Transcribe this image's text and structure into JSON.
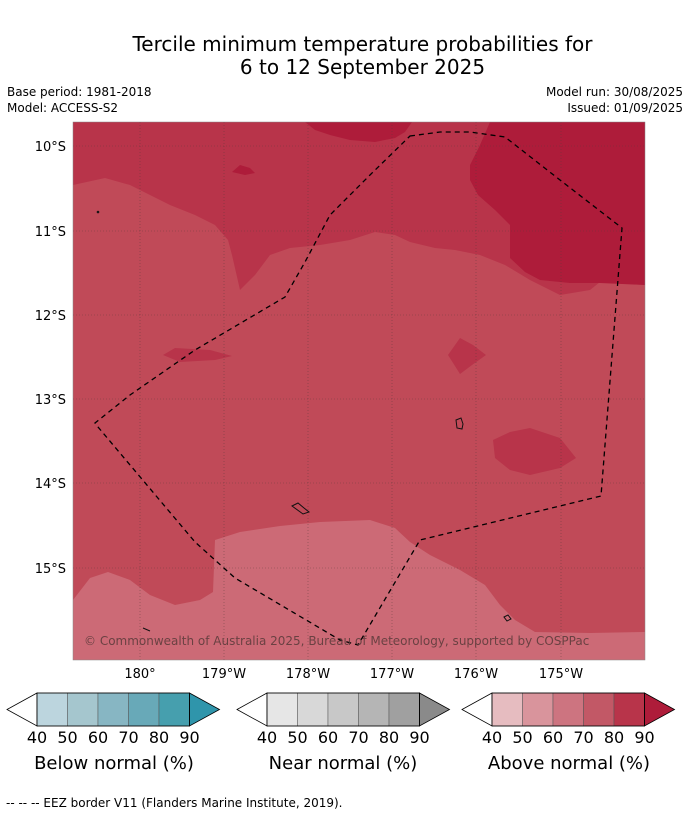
{
  "title": {
    "line1": "Tercile minimum temperature probabilities for",
    "line2": "6 to 12 September 2025"
  },
  "meta": {
    "base_period": "Base period: 1981-2018",
    "model": "Model: ACCESS-S2",
    "model_run": "Model run: 30/08/2025",
    "issued": "Issued: 01/09/2025"
  },
  "map": {
    "lat_labels": [
      "10°S",
      "11°S",
      "12°S",
      "13°S",
      "14°S",
      "15°S"
    ],
    "lon_labels": [
      "180°",
      "179°W",
      "178°W",
      "177°W",
      "176°W",
      "175°W"
    ],
    "copyright": "© Commonwealth of Australia 2025, Bureau of Meteorology, supported by COSPPac",
    "colors": {
      "above_60_70": "#cc6a76",
      "above_70_80": "#c04a58",
      "above_80_90": "#b8344a",
      "above_90": "#ae1c3a"
    }
  },
  "colorbars": [
    {
      "label": "Below normal (%)",
      "ticks": [
        "40",
        "50",
        "60",
        "70",
        "80",
        "90"
      ],
      "colors": [
        "#bcd5de",
        "#a5c6ce",
        "#87b6c3",
        "#68a9b8",
        "#469fae",
        "#2f95ab"
      ]
    },
    {
      "label": "Near normal (%)",
      "ticks": [
        "40",
        "50",
        "60",
        "70",
        "80",
        "90"
      ],
      "colors": [
        "#e6e6e6",
        "#d8d8d8",
        "#c8c8c8",
        "#b5b5b5",
        "#a0a0a0",
        "#8a8a8a"
      ]
    },
    {
      "label": "Above normal (%)",
      "ticks": [
        "40",
        "50",
        "60",
        "70",
        "80",
        "90"
      ],
      "colors": [
        "#e6bcc0",
        "#d9949c",
        "#cd7480",
        "#c25866",
        "#b8344a",
        "#ae1c3a"
      ]
    }
  ],
  "footer": "-- -- -- EEZ border V11 (Flanders Marine Institute, 2019)."
}
